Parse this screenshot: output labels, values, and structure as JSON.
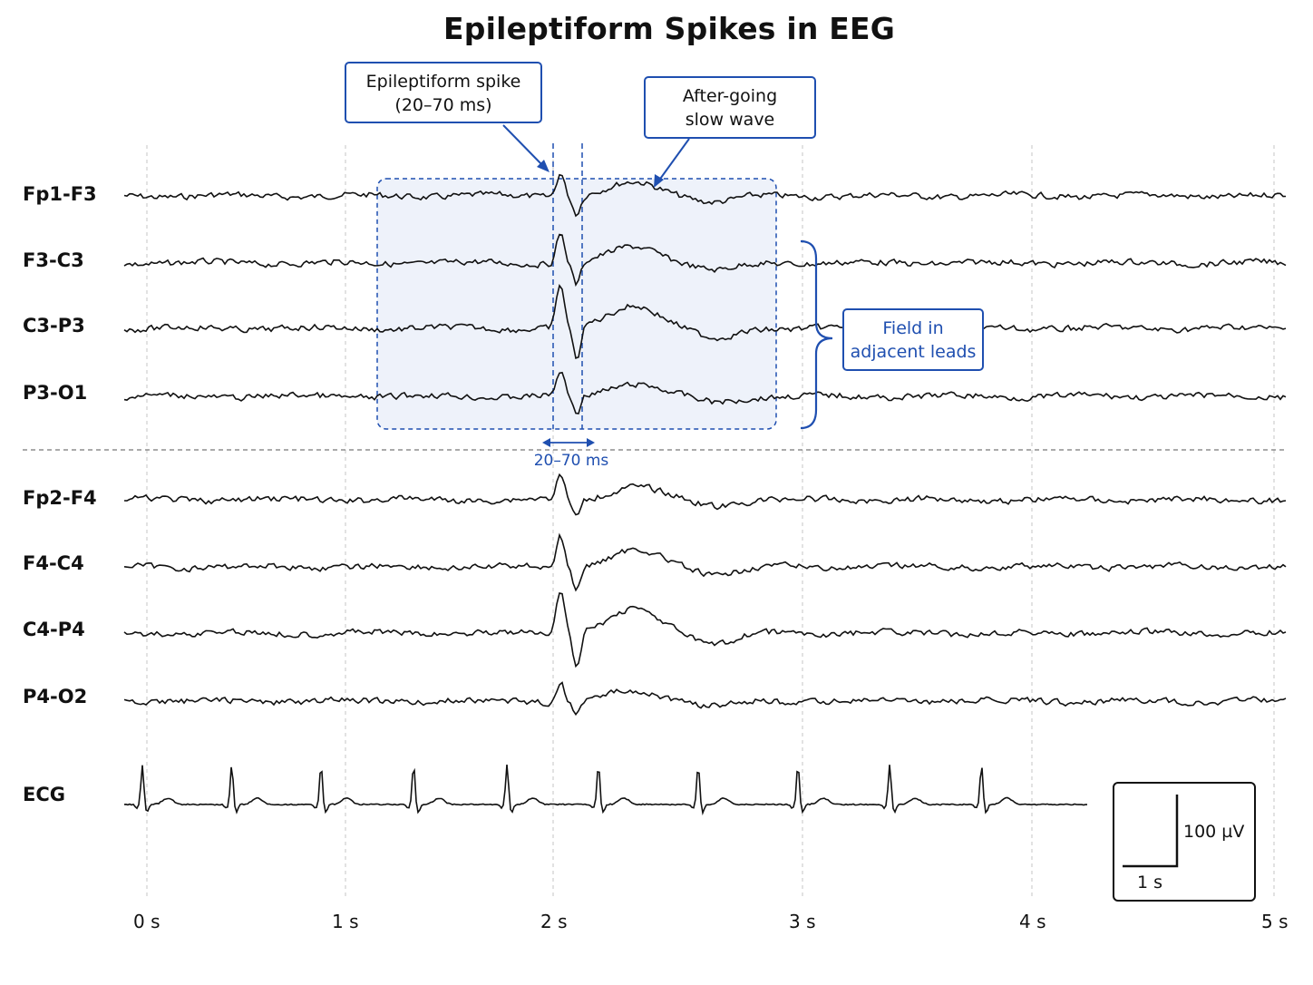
{
  "title": "Epileptiform Spikes in EEG",
  "leads": [
    "Fp1-F3",
    "F3-C3",
    "C3-P3",
    "P3-O1",
    "Fp2-F4",
    "F4-C4",
    "C4-P4",
    "P4-O2"
  ],
  "ecg_label": "ECG",
  "time_ticks": [
    "0 s",
    "1 s",
    "2 s",
    "3 s",
    "4 s",
    "5 s"
  ],
  "callouts": {
    "spike": [
      "Epileptiform spike",
      "(20–70 ms)"
    ],
    "slow_wave": [
      "After-going",
      "slow wave"
    ],
    "field": [
      "Field in",
      "adjacent leads"
    ]
  },
  "duration_label": "20–70 ms",
  "scale_bar": {
    "amplitude": "100 µV",
    "time": "1 s"
  },
  "colors": {
    "accent": "#1f4fb0",
    "highlight_fill": "#eef2fa",
    "trace": "#111111"
  },
  "chart_data": {
    "type": "line",
    "title": "Epileptiform Spikes in EEG",
    "x_unit": "s",
    "xlim": [
      0,
      5
    ],
    "spike_time": 2.05,
    "spike_duration_ms": [
      20,
      70
    ],
    "highlighted_window": [
      1.0,
      3.0
    ],
    "highlighted_leads": [
      "Fp1-F3",
      "F3-C3",
      "C3-P3",
      "P3-O1"
    ],
    "spike_amplitude_rel": [
      0.55,
      0.7,
      1.0,
      0.55,
      0.55,
      0.7,
      1.0,
      0.45
    ],
    "ecg_beats": [
      0.0,
      0.45,
      0.9,
      1.35,
      1.8,
      2.2,
      2.6,
      3.0,
      3.4,
      3.8
    ]
  }
}
